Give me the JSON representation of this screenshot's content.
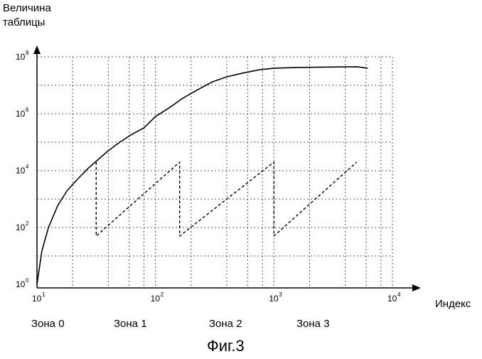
{
  "chart_data": {
    "type": "line",
    "ylabel_lines": [
      "Величина",
      "таблицы"
    ],
    "xlabel": "Индекс",
    "caption": "Фиг.3",
    "x_scale": "log",
    "y_scale": "log",
    "xlim": [
      10,
      10000
    ],
    "ylim": [
      1,
      100000000
    ],
    "x_ticks": [
      {
        "base": "10",
        "exp": "1",
        "value": 10
      },
      {
        "base": "10",
        "exp": "2",
        "value": 100
      },
      {
        "base": "10",
        "exp": "3",
        "value": 1000
      },
      {
        "base": "10",
        "exp": "4",
        "value": 10000
      }
    ],
    "y_ticks": [
      {
        "base": "10",
        "exp": "0",
        "value": 1
      },
      {
        "base": "10",
        "exp": "2",
        "value": 100
      },
      {
        "base": "10",
        "exp": "4",
        "value": 10000
      },
      {
        "base": "10",
        "exp": "6",
        "value": 1000000
      },
      {
        "base": "10",
        "exp": "8",
        "value": 100000000
      }
    ],
    "zones": [
      {
        "label": "Зона 0"
      },
      {
        "label": "Зона 1"
      },
      {
        "label": "Зона 2"
      },
      {
        "label": "Зона 3"
      }
    ],
    "grid": true,
    "grid_style": "dashed",
    "series": [
      {
        "style": "solid",
        "x": [
          10,
          11,
          12.5,
          15,
          18,
          22,
          27,
          33,
          40,
          50,
          62,
          80,
          100,
          130,
          170,
          220,
          300,
          400,
          550,
          750,
          1000,
          1500,
          2000,
          3000,
          4000,
          5000,
          6200
        ],
        "y": [
          1,
          15,
          100,
          600,
          2000,
          5000,
          12000,
          25000,
          50000,
          100000,
          180000,
          320000,
          800000,
          1600000,
          3500000,
          6500000,
          13000000,
          20000000,
          27000000,
          35000000,
          40000000,
          42000000,
          43000000,
          44000000,
          44500000,
          45000000,
          40000000
        ]
      },
      {
        "style": "dashed",
        "x": [
          31.6,
          31.6,
          160,
          160,
          1000,
          1000,
          5000
        ],
        "y": [
          20000,
          50,
          20000,
          50,
          20000,
          50,
          20000
        ]
      }
    ]
  }
}
